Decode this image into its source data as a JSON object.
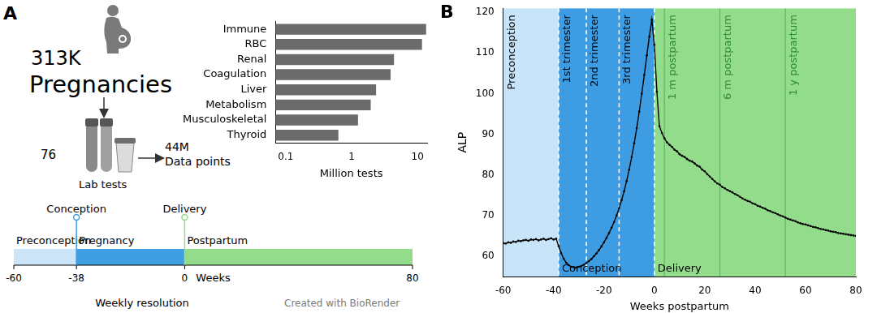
{
  "panel_labels": [
    "A",
    "B"
  ],
  "overview": {
    "count": "313K",
    "count_label": "Pregnancies",
    "tests": 76,
    "tests_label": "Lab tests",
    "points": "44M",
    "points_label": "Data points"
  },
  "timeline": {
    "segments": [
      {
        "label": "Preconception",
        "start": -60,
        "end": -38,
        "color": "#cce5f8"
      },
      {
        "label": "Pregnancy",
        "start": -38,
        "end": 0,
        "color": "#3f9fe2"
      },
      {
        "label": "Postpartum",
        "start": 0,
        "end": 80,
        "color": "#92dc8c"
      }
    ],
    "events": [
      {
        "label": "Conception",
        "x": -38,
        "color": "#3f9fe2"
      },
      {
        "label": "Delivery",
        "x": 0,
        "color": "#92dc8c"
      }
    ],
    "xticks": [
      -60,
      -38,
      0,
      80
    ],
    "xlabel": "Weeks",
    "note": "Weekly resolution",
    "credit": "Created with BioRender"
  },
  "chart_data": [
    {
      "type": "bar",
      "orientation": "horizontal",
      "log": "x",
      "categories": [
        "Immune",
        "RBC",
        "Renal",
        "Coagulation",
        "Liver",
        "Metabolism",
        "Musculoskeletal",
        "Thyroid"
      ],
      "values": [
        13.5,
        11.7,
        4.4,
        3.9,
        2.35,
        1.95,
        1.25,
        0.63
      ],
      "color": "#6b6b6b",
      "xlabel": "Million tests",
      "xlim": [
        0.07,
        14
      ],
      "xticks": [
        0.1,
        1,
        10
      ],
      "grid": false
    },
    {
      "type": "line",
      "xlabel": "Weeks postpartum",
      "ylabel": "ALP",
      "color": "#000000",
      "marker": "circle",
      "grid": false,
      "xlim": [
        -60,
        80
      ],
      "xticks": [
        -60,
        -40,
        -20,
        0,
        20,
        40,
        60,
        80
      ],
      "ylim": [
        55,
        121
      ],
      "yticks": [
        60,
        70,
        80,
        90,
        100,
        110,
        120
      ],
      "x": [
        -60,
        -59,
        -58,
        -57,
        -56,
        -55,
        -54,
        -53,
        -52,
        -51,
        -50,
        -49,
        -48,
        -47,
        -46,
        -45,
        -44,
        -43,
        -42,
        -41,
        -40,
        -39,
        -38,
        -37,
        -36,
        -35,
        -34,
        -33,
        -32,
        -31,
        -30,
        -29,
        -28,
        -27,
        -26,
        -25,
        -24,
        -23,
        -22,
        -21,
        -20,
        -19,
        -18,
        -17,
        -16,
        -15,
        -14,
        -13,
        -12,
        -11,
        -10,
        -9,
        -8,
        -7,
        -6,
        -5,
        -4,
        -3,
        -2,
        -1,
        0,
        1,
        2,
        3,
        4,
        5,
        6,
        7,
        8,
        9,
        10,
        11,
        12,
        13,
        14,
        15,
        16,
        17,
        18,
        19,
        20,
        21,
        22,
        23,
        24,
        25,
        26,
        27,
        28,
        29,
        30,
        31,
        32,
        33,
        34,
        35,
        36,
        37,
        38,
        39,
        40,
        41,
        42,
        43,
        44,
        45,
        46,
        47,
        48,
        49,
        50,
        51,
        52,
        53,
        54,
        55,
        56,
        57,
        58,
        59,
        60,
        61,
        62,
        63,
        64,
        65,
        66,
        67,
        68,
        69,
        70,
        71,
        72,
        73,
        74,
        75,
        76,
        77,
        78,
        79,
        80
      ],
      "values": [
        63.2,
        63.1,
        63.4,
        63.3,
        63.6,
        63.5,
        63.8,
        63.7,
        63.9,
        64.0,
        63.8,
        64.1,
        64.0,
        64.2,
        63.9,
        64.1,
        64.3,
        64.0,
        64.2,
        64.4,
        64.1,
        64.3,
        62.5,
        60.8,
        59.4,
        58.4,
        57.8,
        57.4,
        57.3,
        57.2,
        57.4,
        57.6,
        57.9,
        58.3,
        58.8,
        59.3,
        60.0,
        60.7,
        61.5,
        62.4,
        63.4,
        64.5,
        65.7,
        67.0,
        68.4,
        70.0,
        71.8,
        73.8,
        76.0,
        78.5,
        81.3,
        84.4,
        87.8,
        91.5,
        95.6,
        100.0,
        104.6,
        109.4,
        114.0,
        118.2,
        112.0,
        100.5,
        92.0,
        90.3,
        89.0,
        88.0,
        87.4,
        86.9,
        86.2,
        85.8,
        85.1,
        84.7,
        84.4,
        83.9,
        83.5,
        83.3,
        82.8,
        82.3,
        82.0,
        81.3,
        80.9,
        80.2,
        79.6,
        79.0,
        78.4,
        77.9,
        77.6,
        77.0,
        76.7,
        76.3,
        76.0,
        75.7,
        75.3,
        75.0,
        74.6,
        74.2,
        73.9,
        73.6,
        73.4,
        73.0,
        72.8,
        72.4,
        72.2,
        71.9,
        71.7,
        71.3,
        71.1,
        70.8,
        70.6,
        70.3,
        70.0,
        69.8,
        69.5,
        69.2,
        69.0,
        68.8,
        68.6,
        68.3,
        68.1,
        67.9,
        67.8,
        67.6,
        67.4,
        67.2,
        67.1,
        66.9,
        66.7,
        66.6,
        66.4,
        66.3,
        66.1,
        66.0,
        65.9,
        65.7,
        65.6,
        65.5,
        65.4,
        65.3,
        65.2,
        65.1,
        65.0
      ],
      "regions": [
        {
          "x0": -60,
          "x1": -38,
          "color": "#c8e4f8"
        },
        {
          "x0": -38,
          "x1": 0,
          "color": "#3d9ce2"
        },
        {
          "x0": 0,
          "x1": 80,
          "color": "#92dc8c"
        }
      ],
      "vlines": [
        {
          "x": -38,
          "color": "#ffffff",
          "line_style": "dashed"
        },
        {
          "x": -27,
          "color": "#ffffff",
          "line_style": "dashed"
        },
        {
          "x": -14,
          "color": "#ffffff",
          "line_style": "dashed"
        },
        {
          "x": 0,
          "color": "#ffffff",
          "line_style": "dashed"
        },
        {
          "x": 4,
          "color": "#66b866",
          "line_style": "solid"
        },
        {
          "x": 26,
          "color": "#66b866",
          "line_style": "solid"
        },
        {
          "x": 52,
          "color": "#66b866",
          "line_style": "solid"
        }
      ],
      "region_labels": [
        {
          "text": "Preconception",
          "x": -60,
          "color": "#000000"
        },
        {
          "text": "1st trimester",
          "x": -38,
          "color": "#000000"
        },
        {
          "text": "2nd trimester",
          "x": -27,
          "color": "#000000"
        },
        {
          "text": "3rd trimester",
          "x": -14,
          "color": "#000000"
        },
        {
          "text": "1 m postpartum",
          "x": 4,
          "color": "#2e8b2e"
        },
        {
          "text": "6 m postpartum",
          "x": 26,
          "color": "#2e8b2e"
        },
        {
          "text": "1 y postpartum",
          "x": 52,
          "color": "#2e8b2e"
        }
      ],
      "event_labels": [
        {
          "text": "Conception",
          "x": -38,
          "color": "#000000"
        },
        {
          "text": "Delivery",
          "x": 0,
          "color": "#000000"
        }
      ]
    }
  ]
}
